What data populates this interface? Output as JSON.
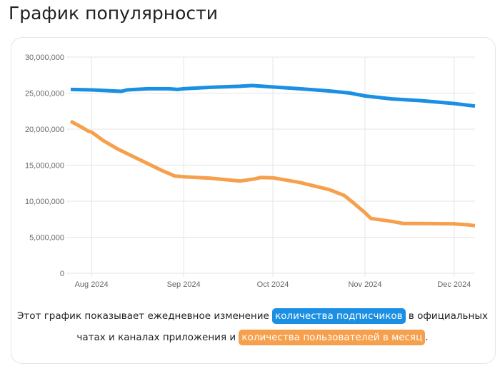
{
  "title": "График популярности",
  "colors": {
    "subscribers": "#1a8fe3",
    "monthly_users": "#f6a04d"
  },
  "caption": {
    "part1": "Этот график показывает ежедневное изменение",
    "highlight1": "количества подписчиков",
    "part2": "в официальных чатах и каналах приложения и",
    "highlight2": "количества пользователей в месяц",
    "part3": "."
  },
  "chart_data": {
    "type": "line",
    "title": "",
    "xlabel": "",
    "ylabel": "",
    "ylim": [
      0,
      30000000
    ],
    "xlim": [
      "2024-07-25",
      "2024-12-08"
    ],
    "grid": true,
    "y_ticks": [
      "0",
      "5,000,000",
      "10,000,000",
      "15,000,000",
      "20,000,000",
      "25,000,000",
      "30,000,000"
    ],
    "x_ticks": [
      {
        "date": "2024-08-01",
        "label": "Aug 2024"
      },
      {
        "date": "2024-09-01",
        "label": "Sep 2024"
      },
      {
        "date": "2024-10-01",
        "label": "Oct 2024"
      },
      {
        "date": "2024-11-01",
        "label": "Nov 2024"
      },
      {
        "date": "2024-12-01",
        "label": "Dec 2024"
      }
    ],
    "series": [
      {
        "color": "#1a8fe3",
        "points": [
          [
            "2024-07-25",
            25500000
          ],
          [
            "2024-08-01",
            25450000
          ],
          [
            "2024-08-11",
            25250000
          ],
          [
            "2024-08-13",
            25450000
          ],
          [
            "2024-08-20",
            25600000
          ],
          [
            "2024-08-27",
            25600000
          ],
          [
            "2024-08-30",
            25500000
          ],
          [
            "2024-09-01",
            25600000
          ],
          [
            "2024-09-10",
            25800000
          ],
          [
            "2024-09-20",
            25950000
          ],
          [
            "2024-09-24",
            26050000
          ],
          [
            "2024-10-01",
            25850000
          ],
          [
            "2024-10-10",
            25600000
          ],
          [
            "2024-10-20",
            25300000
          ],
          [
            "2024-10-27",
            25000000
          ],
          [
            "2024-11-01",
            24600000
          ],
          [
            "2024-11-10",
            24200000
          ],
          [
            "2024-11-20",
            23950000
          ],
          [
            "2024-12-01",
            23550000
          ],
          [
            "2024-12-08",
            23200000
          ]
        ]
      },
      {
        "color": "#f6a04d",
        "points": [
          [
            "2024-07-25",
            21100000
          ],
          [
            "2024-07-29",
            20200000
          ],
          [
            "2024-07-31",
            19700000
          ],
          [
            "2024-08-01",
            19600000
          ],
          [
            "2024-08-05",
            18400000
          ],
          [
            "2024-08-10",
            17200000
          ],
          [
            "2024-08-15",
            16200000
          ],
          [
            "2024-08-20",
            15200000
          ],
          [
            "2024-08-25",
            14200000
          ],
          [
            "2024-08-29",
            13500000
          ],
          [
            "2024-09-01",
            13400000
          ],
          [
            "2024-09-10",
            13200000
          ],
          [
            "2024-09-15",
            13000000
          ],
          [
            "2024-09-20",
            12800000
          ],
          [
            "2024-09-25",
            13100000
          ],
          [
            "2024-09-27",
            13300000
          ],
          [
            "2024-10-01",
            13250000
          ],
          [
            "2024-10-10",
            12600000
          ],
          [
            "2024-10-20",
            11600000
          ],
          [
            "2024-10-25",
            10800000
          ],
          [
            "2024-10-28",
            9800000
          ],
          [
            "2024-11-01",
            8400000
          ],
          [
            "2024-11-03",
            7600000
          ],
          [
            "2024-11-10",
            7200000
          ],
          [
            "2024-11-14",
            6900000
          ],
          [
            "2024-11-20",
            6900000
          ],
          [
            "2024-12-01",
            6850000
          ],
          [
            "2024-12-06",
            6700000
          ],
          [
            "2024-12-08",
            6600000
          ]
        ]
      }
    ]
  }
}
